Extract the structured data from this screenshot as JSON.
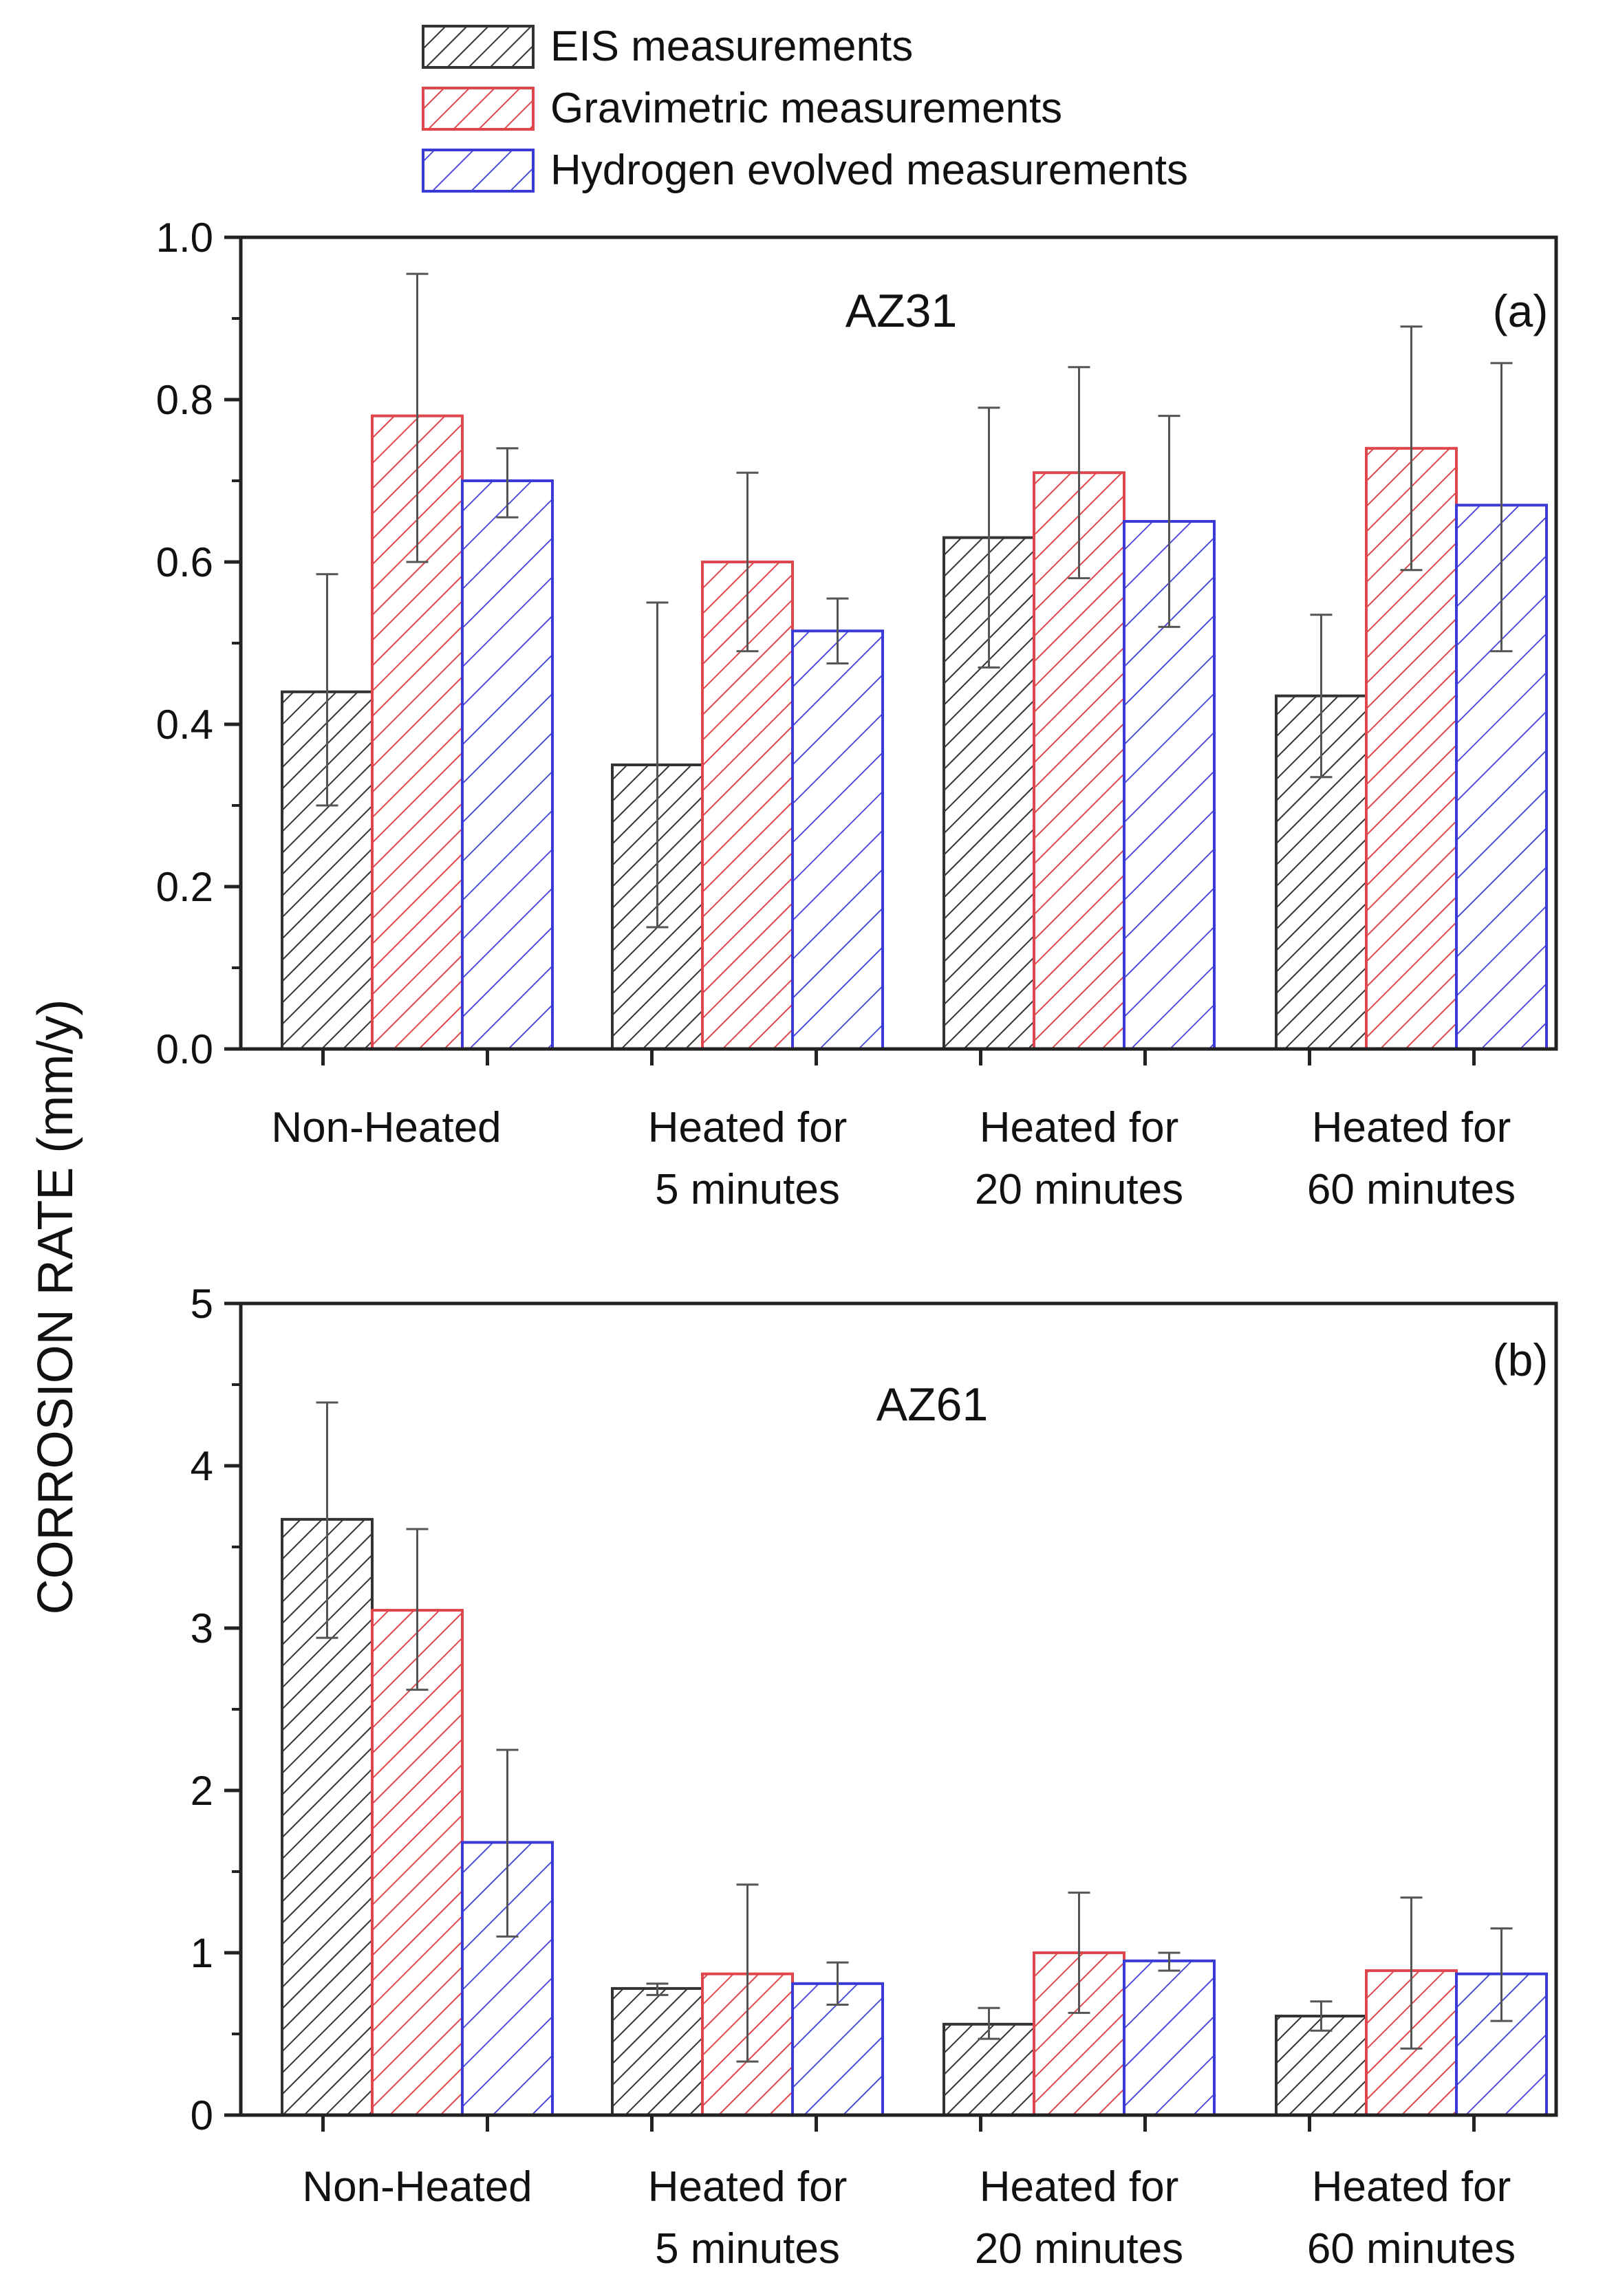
{
  "legend": [
    {
      "name": "EIS measurements",
      "color": "#333333"
    },
    {
      "name": "Gravimetric measurements",
      "color": "#e0474c"
    },
    {
      "name": "Hydrogen evolved measurements",
      "color": "#3a3ad6"
    }
  ],
  "ylabel": "CORROSION RATE (mm/y)",
  "chart_data": [
    {
      "type": "bar",
      "title": "AZ31",
      "panel_label": "(a)",
      "categories": [
        [
          "Non-Heated"
        ],
        [
          "Heated for",
          "5 minutes"
        ],
        [
          "Heated for",
          "20 minutes"
        ],
        [
          "Heated for",
          "60 minutes"
        ]
      ],
      "ylim": [
        0,
        1.0
      ],
      "yticks": [
        0.0,
        0.2,
        0.4,
        0.6,
        0.8,
        1.0
      ],
      "ytick_labels": [
        "0.0",
        "0.2",
        "0.4",
        "0.6",
        "0.8",
        "1.0"
      ],
      "series": [
        {
          "name": "EIS measurements",
          "values": [
            0.44,
            0.35,
            0.63,
            0.435
          ],
          "err_low": [
            0.3,
            0.15,
            0.47,
            0.335
          ],
          "err_high": [
            0.585,
            0.55,
            0.79,
            0.535
          ]
        },
        {
          "name": "Gravimetric measurements",
          "values": [
            0.78,
            0.6,
            0.71,
            0.74
          ],
          "err_low": [
            0.6,
            0.49,
            0.58,
            0.59
          ],
          "err_high": [
            0.955,
            0.71,
            0.84,
            0.89
          ]
        },
        {
          "name": "Hydrogen evolved measurements",
          "values": [
            0.7,
            0.515,
            0.65,
            0.67
          ],
          "err_low": [
            0.655,
            0.475,
            0.52,
            0.49
          ],
          "err_high": [
            0.74,
            0.555,
            0.78,
            0.845
          ]
        }
      ]
    },
    {
      "type": "bar",
      "title": "AZ61",
      "panel_label": "(b)",
      "categories": [
        [
          "Non-Heated"
        ],
        [
          "Heated for",
          "5 minutes"
        ],
        [
          "Heated for",
          "20 minutes"
        ],
        [
          "Heated for",
          "60 minutes"
        ]
      ],
      "ylim": [
        0,
        5
      ],
      "yticks": [
        0,
        1,
        2,
        3,
        4,
        5
      ],
      "ytick_labels": [
        "0",
        "1",
        "2",
        "3",
        "4",
        "5"
      ],
      "series": [
        {
          "name": "EIS measurements",
          "values": [
            3.67,
            0.78,
            0.56,
            0.61
          ],
          "err_low": [
            2.94,
            0.74,
            0.47,
            0.52
          ],
          "err_high": [
            4.39,
            0.81,
            0.66,
            0.7
          ]
        },
        {
          "name": "Gravimetric measurements",
          "values": [
            3.11,
            0.87,
            1.0,
            0.89
          ],
          "err_low": [
            2.62,
            0.33,
            0.63,
            0.41
          ],
          "err_high": [
            3.61,
            1.42,
            1.37,
            1.34
          ]
        },
        {
          "name": "Hydrogen evolved measurements",
          "values": [
            1.68,
            0.81,
            0.95,
            0.87
          ],
          "err_low": [
            1.1,
            0.68,
            0.89,
            0.58
          ],
          "err_high": [
            2.25,
            0.94,
            1.0,
            1.15
          ]
        }
      ]
    }
  ]
}
